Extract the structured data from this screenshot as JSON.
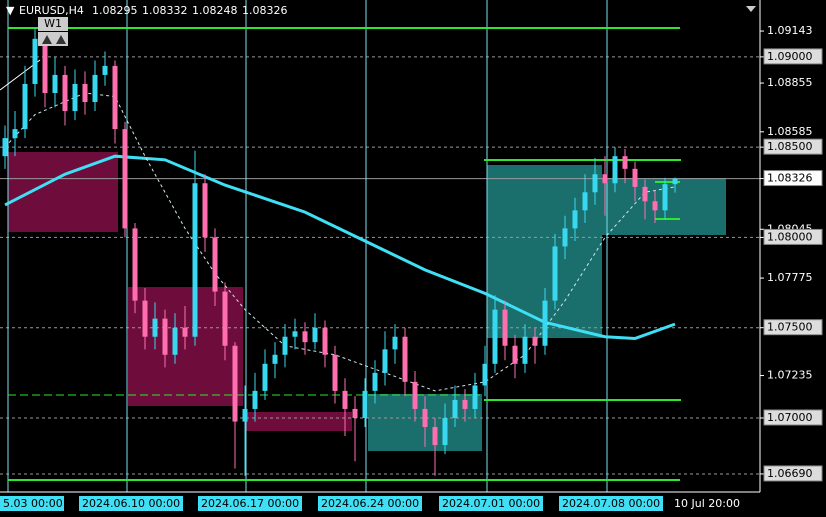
{
  "chart_data": {
    "type": "candlestick",
    "title": "EURUSD,H4",
    "annotation": "W1",
    "bull_color": "#38d9f0",
    "bear_color": "#ff6fb0",
    "xlim": [
      -0.5,
      75.5
    ],
    "ylim": [
      1.0659,
      1.09315
    ],
    "yticks": [
      1.09143,
      {
        "value": 1.09,
        "label": "1.09000"
      },
      1.08855,
      1.08585,
      {
        "value": 1.085,
        "label": "1.08500"
      },
      1.08326,
      1.08045,
      {
        "value": 1.08,
        "label": "1.08000"
      },
      1.07775,
      {
        "value": 1.075,
        "label": "1.07500"
      },
      1.07235,
      {
        "value": 1.07,
        "label": "1.07000"
      },
      {
        "value": 1.0669,
        "label": "1.06690"
      }
    ],
    "xticks": [
      {
        "value": 0.3,
        "label": "5.03 00:00"
      },
      {
        "value": 12.2,
        "label": "2024.06.10 00:00"
      },
      {
        "value": 24.1,
        "label": "2024.06.17 00:00"
      },
      {
        "value": 36.1,
        "label": "2024.06.24 00:00"
      },
      {
        "value": 48.2,
        "label": "2024.07.01 00:00"
      },
      {
        "value": 60.2,
        "label": "2024.07.08 00:00"
      }
    ],
    "time_label": {
      "value": 70.2,
      "label": "10 Jul 20:00"
    },
    "candles": {
      "open": [
        1.0845,
        1.0855,
        1.086,
        1.0885,
        1.091,
        1.088,
        1.089,
        1.087,
        1.0885,
        1.0875,
        1.089,
        1.0895,
        1.086,
        1.0805,
        1.0765,
        1.0745,
        1.0755,
        1.0735,
        1.075,
        1.0745,
        1.083,
        1.08,
        1.077,
        1.074,
        1.0698,
        1.0705,
        1.0715,
        1.073,
        1.0735,
        1.0745,
        1.0748,
        1.0742,
        1.075,
        1.0735,
        1.0715,
        1.0705,
        1.07,
        1.0715,
        1.0725,
        1.0738,
        1.0745,
        1.072,
        1.0705,
        1.0695,
        1.0685,
        1.07,
        1.071,
        1.0705,
        1.0718,
        1.073,
        1.076,
        1.074,
        1.073,
        1.0745,
        1.074,
        1.0765,
        1.0795,
        1.0805,
        1.0815,
        1.0825,
        1.0835,
        1.083,
        1.0845,
        1.0838,
        1.0828,
        1.082,
        1.0815,
        1.08295
      ],
      "high": [
        1.0862,
        1.087,
        1.0895,
        1.0916,
        1.0912,
        1.09,
        1.0895,
        1.0893,
        1.0892,
        1.0898,
        1.0903,
        1.0898,
        1.0864,
        1.0808,
        1.0772,
        1.0764,
        1.076,
        1.0758,
        1.0762,
        1.0848,
        1.0835,
        1.0805,
        1.0775,
        1.0742,
        1.0718,
        1.0725,
        1.0738,
        1.0742,
        1.0752,
        1.0755,
        1.0753,
        1.0758,
        1.0754,
        1.074,
        1.0722,
        1.0712,
        1.0722,
        1.0732,
        1.0748,
        1.0752,
        1.075,
        1.0726,
        1.0712,
        1.07,
        1.0708,
        1.0718,
        1.0716,
        1.0725,
        1.074,
        1.0768,
        1.0765,
        1.0746,
        1.0752,
        1.075,
        1.0772,
        1.0802,
        1.0812,
        1.0822,
        1.0835,
        1.0844,
        1.0845,
        1.085,
        1.0849,
        1.0842,
        1.0832,
        1.0826,
        1.0833,
        1.08332
      ],
      "low": [
        1.0838,
        1.0845,
        1.0855,
        1.0878,
        1.0872,
        1.0872,
        1.0862,
        1.0865,
        1.0868,
        1.087,
        1.0884,
        1.0852,
        1.08,
        1.0758,
        1.0738,
        1.0738,
        1.0728,
        1.073,
        1.0738,
        1.074,
        1.0792,
        1.0762,
        1.0732,
        1.0672,
        1.0668,
        1.0698,
        1.071,
        1.0722,
        1.0728,
        1.0738,
        1.0735,
        1.0738,
        1.0728,
        1.0708,
        1.069,
        1.0676,
        1.0695,
        1.0708,
        1.0718,
        1.073,
        1.0712,
        1.0698,
        1.0684,
        1.0668,
        1.068,
        1.0695,
        1.0698,
        1.07,
        1.0712,
        1.0725,
        1.0732,
        1.0722,
        1.0725,
        1.073,
        1.0735,
        1.076,
        1.0788,
        1.0798,
        1.0808,
        1.0818,
        1.0812,
        1.0825,
        1.083,
        1.082,
        1.081,
        1.0808,
        1.081,
        1.08248
      ],
      "close": [
        1.0855,
        1.086,
        1.0885,
        1.091,
        1.088,
        1.089,
        1.087,
        1.0885,
        1.0875,
        1.089,
        1.0895,
        1.086,
        1.0805,
        1.0765,
        1.0745,
        1.0755,
        1.0735,
        1.075,
        1.0745,
        1.083,
        1.08,
        1.077,
        1.074,
        1.0698,
        1.0705,
        1.0715,
        1.073,
        1.0735,
        1.0745,
        1.0748,
        1.0742,
        1.075,
        1.0735,
        1.0715,
        1.0705,
        1.07,
        1.0715,
        1.0725,
        1.0738,
        1.0745,
        1.072,
        1.0705,
        1.0695,
        1.0685,
        1.07,
        1.071,
        1.0705,
        1.0718,
        1.073,
        1.076,
        1.074,
        1.073,
        1.0745,
        1.074,
        1.0765,
        1.0795,
        1.0805,
        1.0815,
        1.0825,
        1.0835,
        1.083,
        1.0845,
        1.0838,
        1.0828,
        1.082,
        1.0815,
        1.08295,
        1.08326
      ]
    },
    "overlays": [
      {
        "color": "#3fe0f5",
        "width": 3,
        "dashed": false,
        "x": [
          0,
          6,
          11,
          16,
          22,
          30,
          36,
          42,
          48,
          54,
          60,
          63,
          67
        ],
        "values": [
          1.0818,
          1.0835,
          1.0845,
          1.0843,
          1.0829,
          1.0814,
          1.0798,
          1.0782,
          1.0769,
          1.0753,
          1.0745,
          1.0744,
          1.0752
        ]
      },
      {
        "color": "#cfe8f0",
        "width": 1,
        "dashed": true,
        "x": [
          0,
          3,
          8,
          11,
          14,
          18,
          21,
          24,
          28,
          33,
          38,
          43,
          48,
          52,
          56,
          60,
          64,
          67
        ],
        "values": [
          1.085,
          1.0868,
          1.088,
          1.0878,
          1.0845,
          1.0805,
          1.078,
          1.076,
          1.074,
          1.0735,
          1.0725,
          1.0715,
          1.072,
          1.0735,
          1.0765,
          1.08,
          1.0825,
          1.0828
        ]
      }
    ]
  }
}
